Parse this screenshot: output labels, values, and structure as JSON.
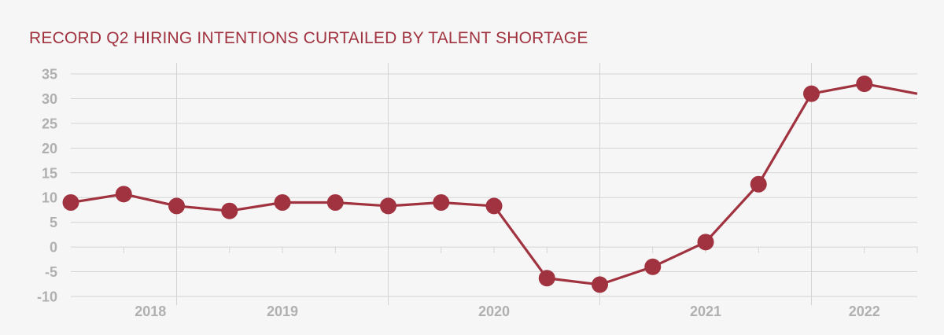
{
  "chart_data": {
    "type": "line",
    "title": "RECORD Q2 HIRING INTENTIONS CURTAILED BY TALENT SHORTAGE",
    "xlabel": "",
    "ylabel": "",
    "ylim": [
      -10,
      35
    ],
    "yticks": [
      "35",
      "30",
      "25",
      "20",
      "15",
      "10",
      "5",
      "0",
      "-5",
      "-10"
    ],
    "year_labels": [
      "2018",
      "2019",
      "2020",
      "2021",
      "2022"
    ],
    "grid": true,
    "legend": "none",
    "series": [
      {
        "values": [
          9,
          10.7,
          8.3,
          7.3,
          9,
          9,
          8.3,
          9,
          8.3,
          -6.3,
          -7.6,
          -4,
          1,
          12.7,
          31,
          33,
          31
        ]
      }
    ],
    "colors": {
      "line": "#a0333f",
      "grid": "#d4d4d4",
      "tick_text": "#b0b0b0",
      "title": "#a0333f",
      "background": "#f6f6f6"
    }
  }
}
